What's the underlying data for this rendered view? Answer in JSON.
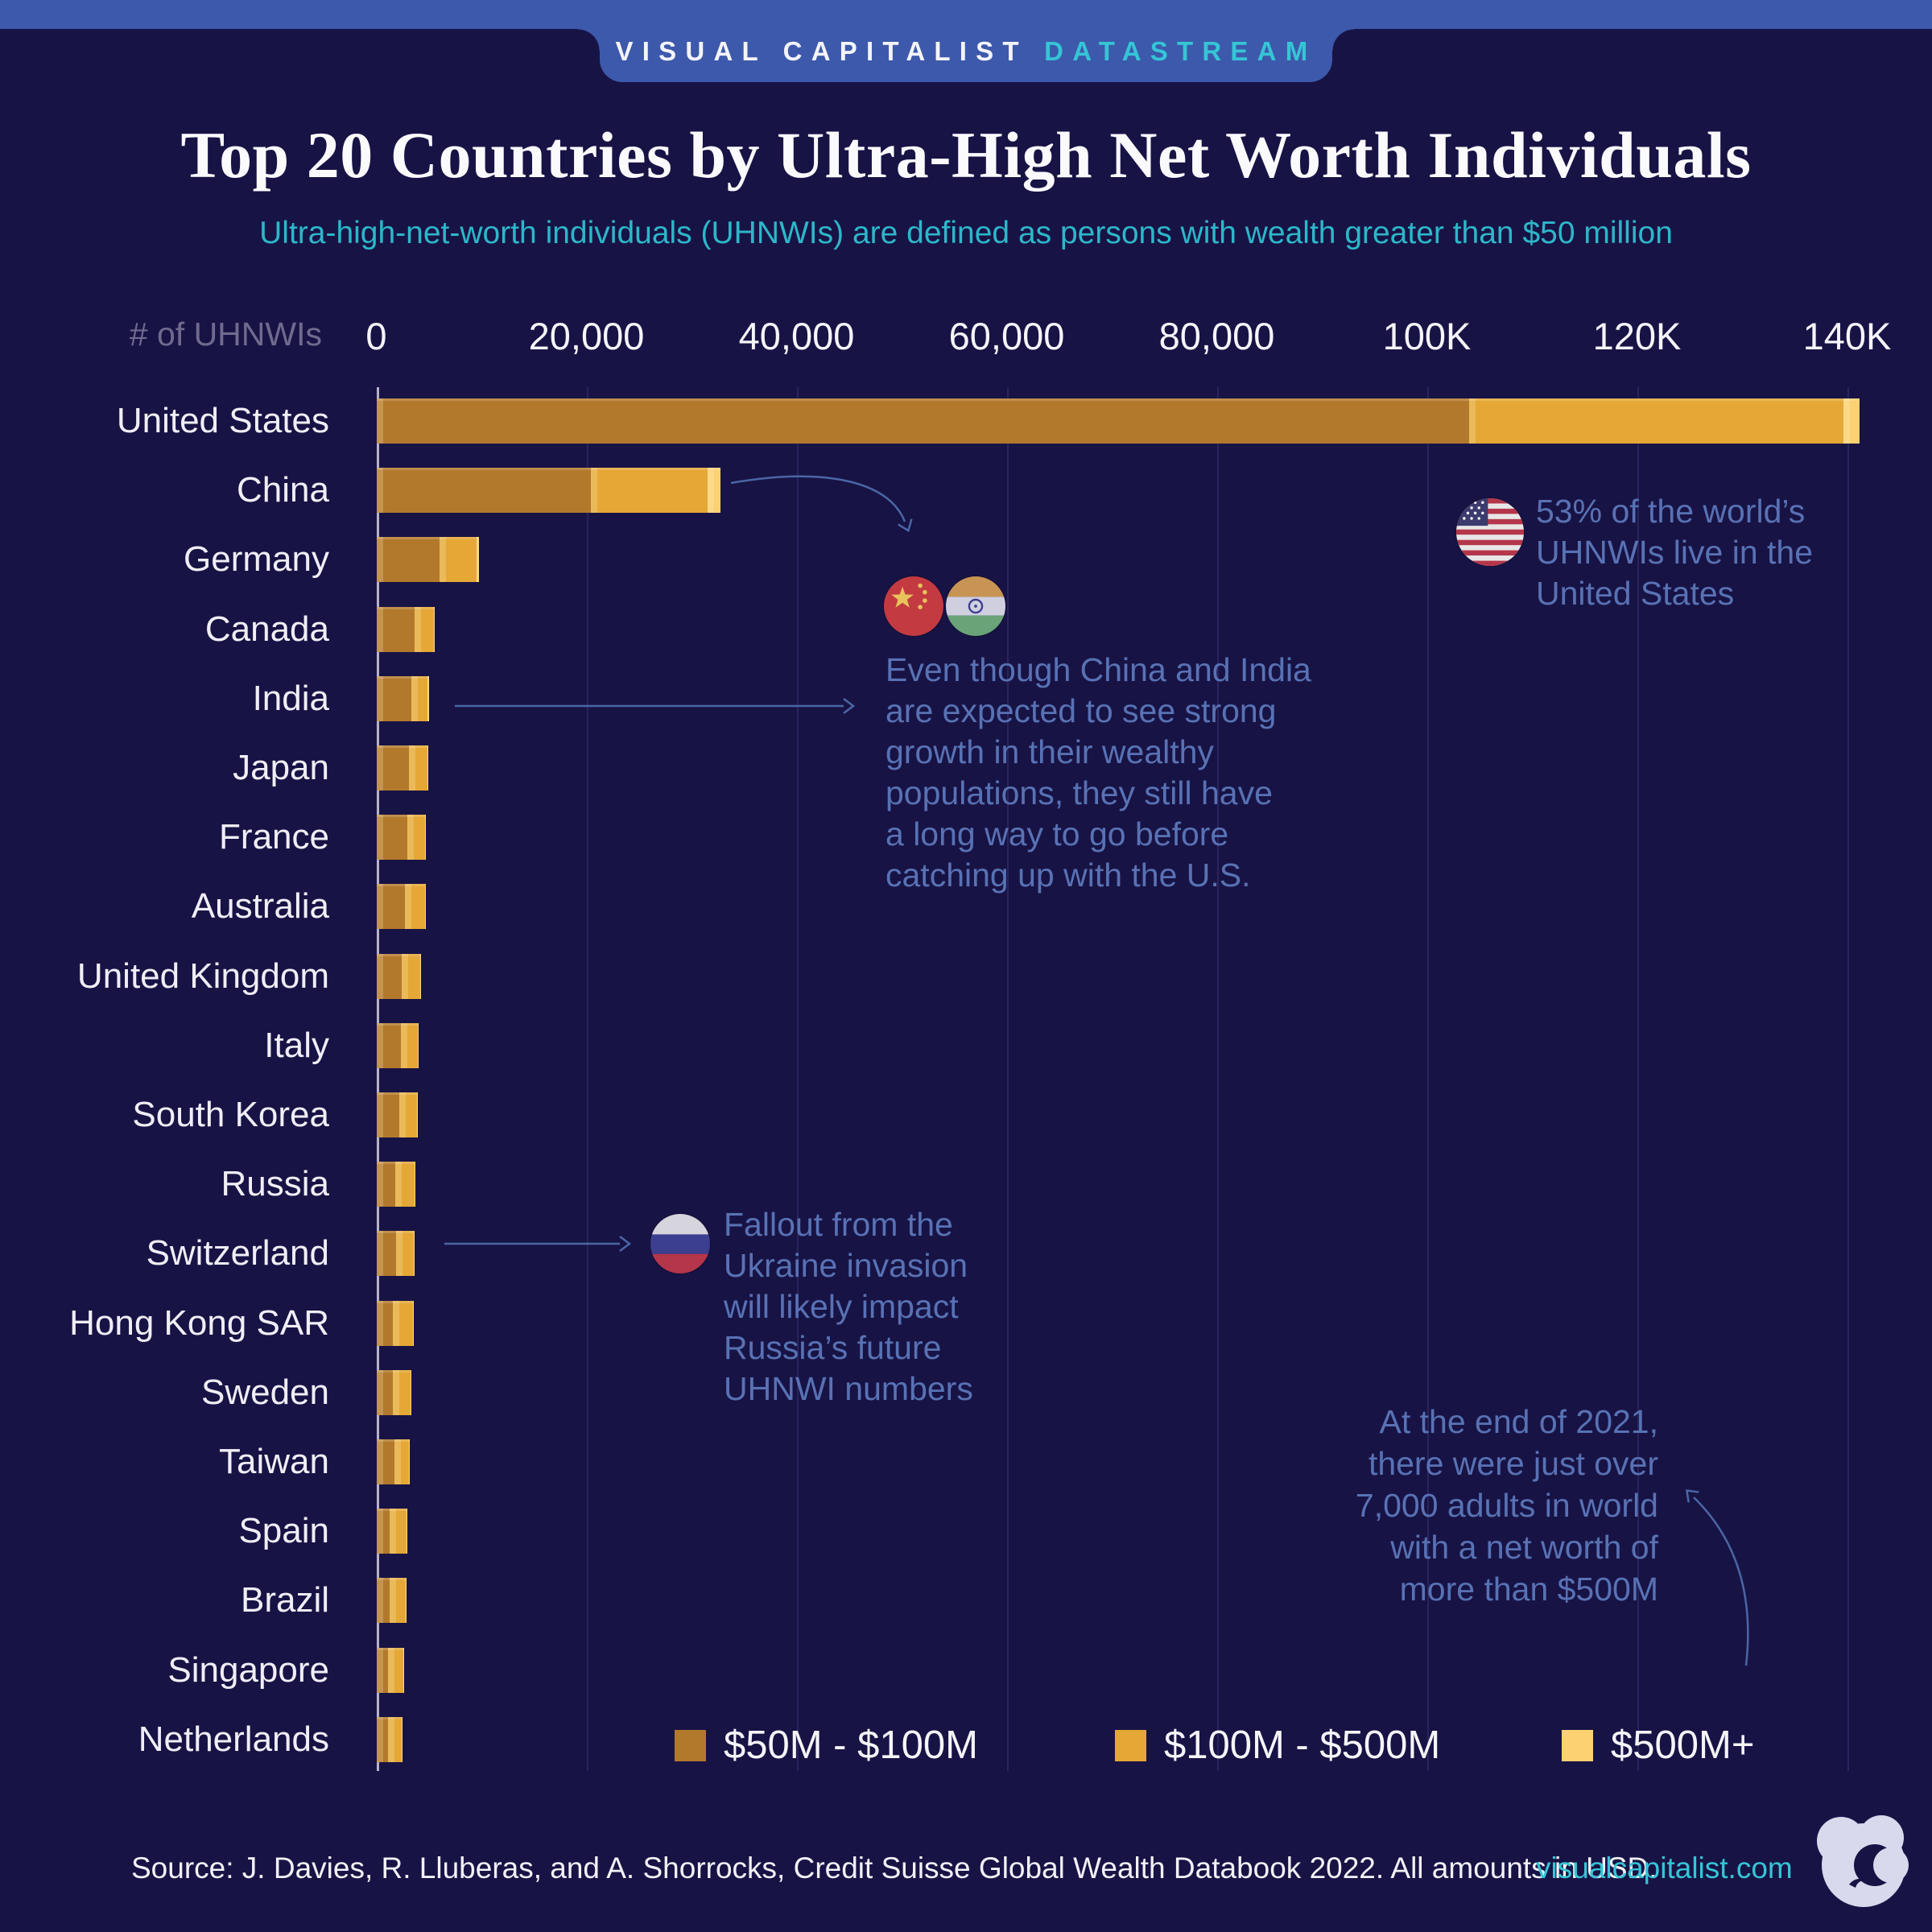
{
  "header": {
    "brand": "VISUAL CAPITALIST",
    "brand_suffix": "DATASTREAM"
  },
  "title": "Top 20 Countries by Ultra-High Net Worth Individuals",
  "subtitle": "Ultra-high-net-worth individuals (UHNWIs) are defined as persons with wealth greater than $50 million",
  "axis": {
    "caption": "# of UHNWIs",
    "ticks": [
      {
        "label": "0",
        "value": 0
      },
      {
        "label": "20,000",
        "value": 20000
      },
      {
        "label": "40,000",
        "value": 40000
      },
      {
        "label": "60,000",
        "value": 60000
      },
      {
        "label": "80,000",
        "value": 80000
      },
      {
        "label": "100K",
        "value": 100000
      },
      {
        "label": "120K",
        "value": 120000
      },
      {
        "label": "140K",
        "value": 140000
      }
    ]
  },
  "colors": {
    "background": "#181345",
    "header_band": "#3d59ab",
    "teal": "#35c5d6",
    "subtitle_teal": "#2db7c9",
    "annotation_blue": "#5872b4",
    "arrow_blue": "#4a66a5",
    "band_50_100": "#b2792c",
    "band_100_500": "#e5a836",
    "band_500_plus": "#fcd171"
  },
  "legend": [
    {
      "label": "$50M - $100M",
      "color": "#b2792c"
    },
    {
      "label": "$100M - $500M",
      "color": "#e5a836"
    },
    {
      "label": "$500M+",
      "color": "#fcd171"
    }
  ],
  "annotations": {
    "us_note": "53% of the world’s\nUHNWIs live in the\nUnited States",
    "china_india_note": "Even though China and India\nare expected to see strong\ngrowth in their wealthy\npopulations, they still have\na long way to go before\ncatching up with the U.S.",
    "russia_note": "Fallout from the\nUkraine invasion\nwill likely impact\nRussia’s future\nUHNWI numbers",
    "m500_note": "At the end of 2021,\nthere were just over\n7,000 adults in world\nwith a net worth of\nmore than $500M"
  },
  "footer": {
    "source": "Source: J. Davies, R. Lluberas, and A. Shorrocks, Credit Suisse Global Wealth Databook 2022. All amounts in USD.",
    "link": "visualcapitalist.com"
  },
  "chart_data": {
    "type": "bar",
    "orientation": "horizontal",
    "title": "Top 20 Countries by Ultra-High Net Worth Individuals",
    "xlabel": "# of UHNWIs",
    "xlim": [
      0,
      148000
    ],
    "grid": true,
    "legend_position": "bottom",
    "categories": [
      "United States",
      "China",
      "Germany",
      "Canada",
      "India",
      "Japan",
      "France",
      "Australia",
      "United Kingdom",
      "Italy",
      "South Korea",
      "Russia",
      "Switzerland",
      "Hong Kong SAR",
      "Sweden",
      "Taiwan",
      "Spain",
      "Brazil",
      "Singapore",
      "Netherlands"
    ],
    "totals": [
      141140,
      32710,
      9720,
      5510,
      4980,
      4870,
      4640,
      4630,
      4180,
      3930,
      3890,
      3620,
      3610,
      3490,
      3240,
      3120,
      2890,
      2820,
      2600,
      2440
    ],
    "series": [
      {
        "name": "$50M - $100M",
        "color": "#b2792c",
        "values": [
          104000,
          20400,
          6000,
          3600,
          3300,
          3100,
          2950,
          2700,
          2400,
          2300,
          2150,
          1800,
          1850,
          1550,
          1550,
          1700,
          1250,
          1200,
          1050,
          1100
        ]
      },
      {
        "name": "$100M - $500M",
        "color": "#e5a836",
        "values": [
          35640,
          11100,
          3490,
          1830,
          1560,
          1720,
          1640,
          1880,
          1730,
          1580,
          1690,
          1770,
          1710,
          1890,
          1640,
          1370,
          1600,
          1580,
          1510,
          1300
        ]
      },
      {
        "name": "$500M+",
        "color": "#fcd171",
        "values": [
          1500,
          1210,
          230,
          80,
          120,
          50,
          50,
          50,
          50,
          50,
          50,
          50,
          50,
          50,
          50,
          50,
          40,
          40,
          40,
          40
        ]
      }
    ]
  }
}
